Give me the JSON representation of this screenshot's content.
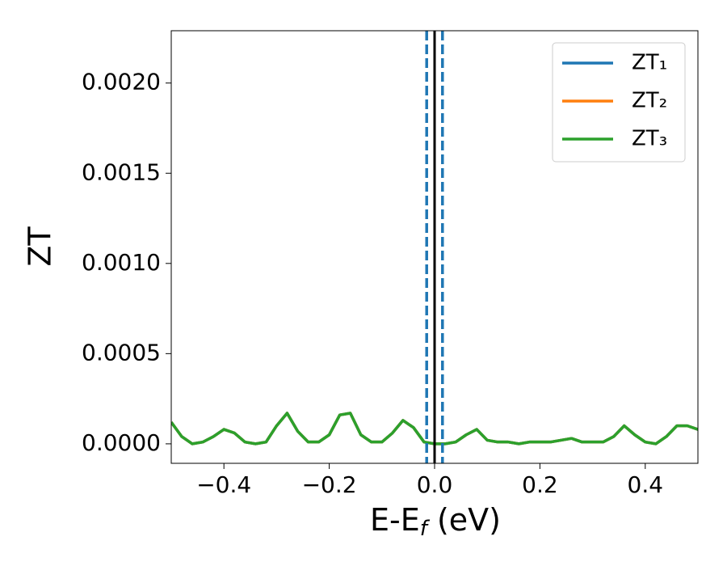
{
  "chart_data": {
    "type": "line",
    "xlabel": {
      "main": "E-E",
      "sub": "f",
      "unit": " (eV)"
    },
    "ylabel": "ZT",
    "x": [
      -0.5,
      -0.48,
      -0.46,
      -0.44,
      -0.42,
      -0.4,
      -0.38,
      -0.36,
      -0.34,
      -0.32,
      -0.3,
      -0.28,
      -0.26,
      -0.24,
      -0.22,
      -0.2,
      -0.18,
      -0.16,
      -0.14,
      -0.12,
      -0.1,
      -0.08,
      -0.06,
      -0.04,
      -0.02,
      0,
      0.02,
      0.04,
      0.06,
      0.08,
      0.1,
      0.12,
      0.14,
      0.16,
      0.18,
      0.2,
      0.22,
      0.24,
      0.26,
      0.28,
      0.3,
      0.32,
      0.34,
      0.36,
      0.38,
      0.4,
      0.42,
      0.44,
      0.46,
      0.48,
      0.5
    ],
    "series": [
      {
        "name": "ZT₁",
        "color": "#1f77b4",
        "values": [
          0.00012,
          4e-05,
          0,
          1e-05,
          4e-05,
          8e-05,
          6e-05,
          1e-05,
          0,
          1e-05,
          0.0001,
          0.00017,
          7e-05,
          1e-05,
          1e-05,
          5e-05,
          0.00016,
          0.00017,
          5e-05,
          1e-05,
          1e-05,
          6e-05,
          0.00013,
          9e-05,
          1e-05,
          0,
          0,
          1e-05,
          5e-05,
          8e-05,
          2e-05,
          1e-05,
          1e-05,
          0,
          1e-05,
          1e-05,
          1e-05,
          2e-05,
          3e-05,
          1e-05,
          1e-05,
          1e-05,
          4e-05,
          0.0001,
          5e-05,
          1e-05,
          0,
          4e-05,
          0.0001,
          0.0001,
          8e-05
        ]
      },
      {
        "name": "ZT₂",
        "color": "#ff7f0e",
        "values": [
          0.00012,
          4e-05,
          0,
          1e-05,
          4e-05,
          8e-05,
          6e-05,
          1e-05,
          0,
          1e-05,
          0.0001,
          0.00017,
          7e-05,
          1e-05,
          1e-05,
          5e-05,
          0.00016,
          0.00017,
          5e-05,
          1e-05,
          1e-05,
          6e-05,
          0.00013,
          9e-05,
          1e-05,
          0,
          0,
          1e-05,
          5e-05,
          8e-05,
          2e-05,
          1e-05,
          1e-05,
          0,
          1e-05,
          1e-05,
          1e-05,
          2e-05,
          3e-05,
          1e-05,
          1e-05,
          1e-05,
          4e-05,
          0.0001,
          5e-05,
          1e-05,
          0,
          4e-05,
          0.0001,
          0.0001,
          8e-05
        ]
      },
      {
        "name": "ZT₃",
        "color": "#2ca02c",
        "values": [
          0.00012,
          4e-05,
          0,
          1e-05,
          4e-05,
          8e-05,
          6e-05,
          1e-05,
          0,
          1e-05,
          0.0001,
          0.00017,
          7e-05,
          1e-05,
          1e-05,
          5e-05,
          0.00016,
          0.00017,
          5e-05,
          1e-05,
          1e-05,
          6e-05,
          0.00013,
          9e-05,
          1e-05,
          0,
          0,
          1e-05,
          5e-05,
          8e-05,
          2e-05,
          1e-05,
          1e-05,
          0,
          1e-05,
          1e-05,
          1e-05,
          2e-05,
          3e-05,
          1e-05,
          1e-05,
          1e-05,
          4e-05,
          0.0001,
          5e-05,
          1e-05,
          0,
          4e-05,
          0.0001,
          0.0001,
          8e-05
        ]
      }
    ],
    "vlines": [
      {
        "x": -0.015,
        "color": "#1f77b4",
        "style": "dashed"
      },
      {
        "x": 0.015,
        "color": "#1f77b4",
        "style": "dashed"
      },
      {
        "x": 0,
        "color": "#000000",
        "style": "solid"
      }
    ],
    "xlim": [
      -0.5,
      0.5
    ],
    "ylim": [
      -0.000108,
      0.00229
    ],
    "xticks": [
      {
        "value": -0.4,
        "label": "−0.4"
      },
      {
        "value": -0.2,
        "label": "−0.2"
      },
      {
        "value": 0,
        "label": "0.0"
      },
      0.2,
      0.4
    ],
    "yticks": [
      {
        "value": 0,
        "label": "0.0000"
      },
      0.0005,
      {
        "value": 0.001,
        "label": "0.0010"
      },
      0.0015,
      {
        "value": 0.002,
        "label": "0.0020"
      }
    ],
    "legend": "upper right",
    "grid": false
  }
}
